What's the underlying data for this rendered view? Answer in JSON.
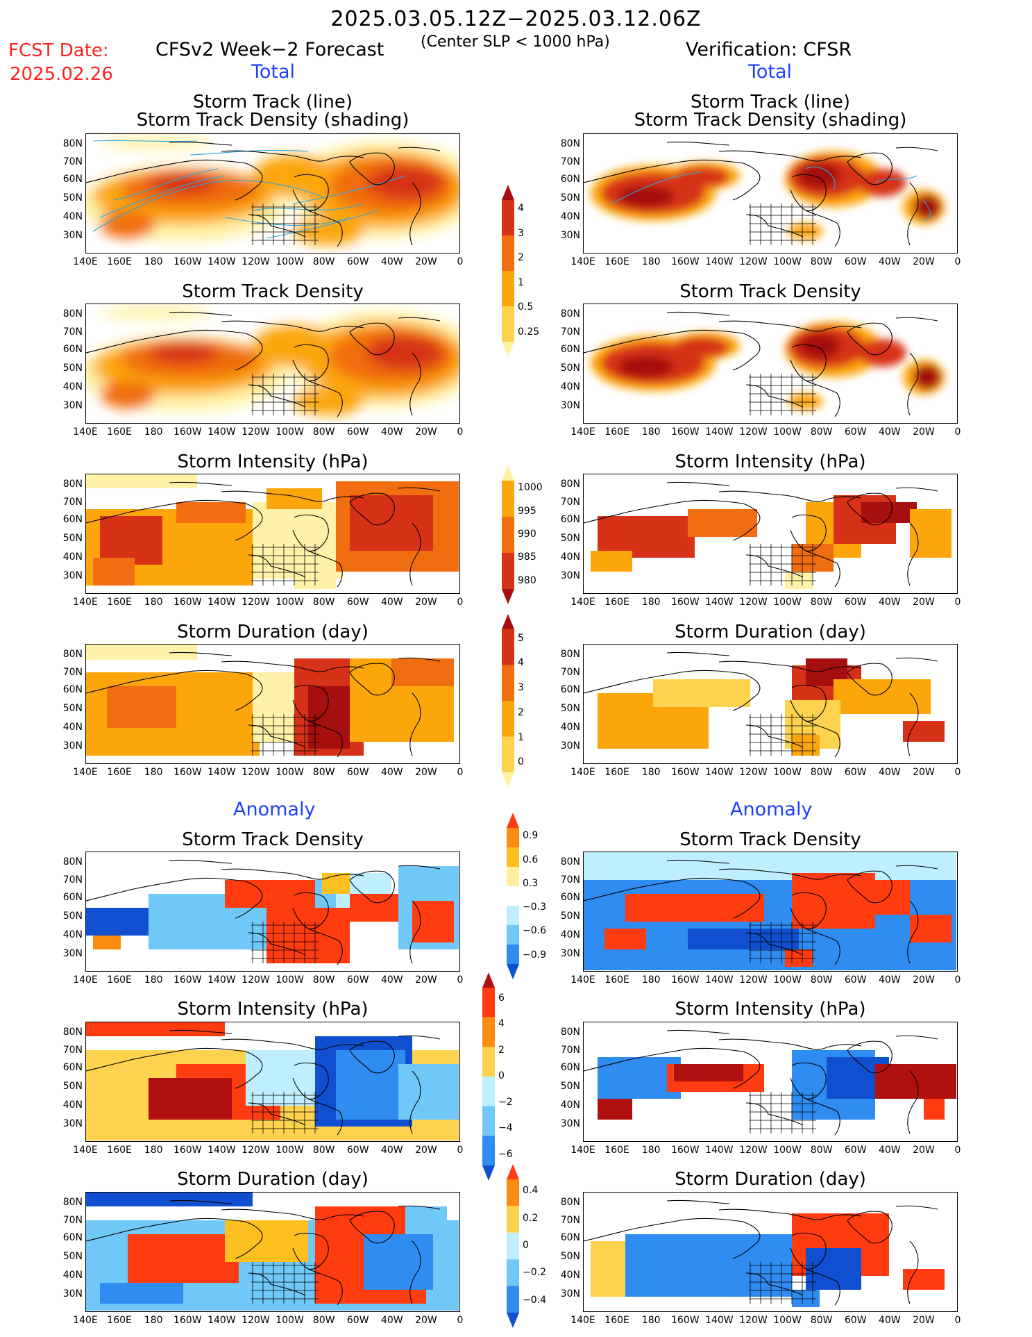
{
  "header": {
    "period": "2025.03.05.12Z−2025.03.12.06Z",
    "fcst_label": "FCST Date:",
    "fcst_date": "2025.02.26",
    "forecast_title": "CFSv2 Week−2 Forecast",
    "subtitle": "(Center SLP < 1000 hPa)",
    "verification_title": "Verification: CFSR"
  },
  "sections": {
    "total_left": "Total",
    "total_right": "Total",
    "anomaly_left": "Anomaly",
    "anomaly_right": "Anomaly"
  },
  "panel_titles": {
    "track_line": "Storm Track (line)",
    "track_density_shading": "Storm Track Density (shading)",
    "track_density": "Storm Track Density",
    "intensity": "Storm Intensity (hPa)",
    "duration": "Storm Duration (day)"
  },
  "axes": {
    "y_ticks": [
      "80N",
      "70N",
      "60N",
      "50N",
      "40N",
      "30N"
    ],
    "x_ticks": [
      "140E",
      "160E",
      "180",
      "160W",
      "140W",
      "120W",
      "100W",
      "80W",
      "60W",
      "40W",
      "20W",
      "0"
    ]
  },
  "colorbars": {
    "density": {
      "labels": [
        "4",
        "3",
        "2",
        "1",
        "0.5",
        "0.25"
      ],
      "colors": [
        "#a50f0f",
        "#d73218",
        "#f06d10",
        "#fca60c",
        "#fdd24e",
        "#fff2a8"
      ]
    },
    "intensity": {
      "labels": [
        "1000",
        "995",
        "990",
        "985",
        "980"
      ],
      "colors": [
        "#fff2a8",
        "#fca60c",
        "#f06d10",
        "#d73218",
        "#a50f0f"
      ]
    },
    "duration": {
      "labels": [
        "5",
        "4",
        "3",
        "2",
        "1",
        "0"
      ],
      "colors": [
        "#a50f0f",
        "#d73218",
        "#f06d10",
        "#fca60c",
        "#fdd24e",
        "#fff2a8"
      ]
    },
    "anom_density": {
      "labels": [
        "0.9",
        "0.6",
        "0.3",
        "−0.3",
        "−0.6",
        "−0.9"
      ],
      "colors": [
        "#ff3b10",
        "#fc8c10",
        "#fdc020",
        "#fff0a0",
        "#ffffff",
        "#bfefff",
        "#6fc8f8",
        "#2f8cf0",
        "#1050d0"
      ]
    },
    "anom_intensity": {
      "labels": [
        "6",
        "4",
        "2",
        "0",
        "−2",
        "−4",
        "−6"
      ],
      "colors": [
        "#b01010",
        "#ff3b10",
        "#fc8c10",
        "#fdd24e",
        "#bfefff",
        "#6fc8f8",
        "#2f8cf0",
        "#1050d0"
      ]
    },
    "anom_duration": {
      "labels": [
        "0.4",
        "0.2",
        "0",
        "−0.2",
        "−0.4"
      ],
      "colors": [
        "#ff3b10",
        "#fc8c10",
        "#fdd24e",
        "#bfefff",
        "#6fc8f8",
        "#2f8cf0",
        "#1050d0"
      ]
    }
  }
}
